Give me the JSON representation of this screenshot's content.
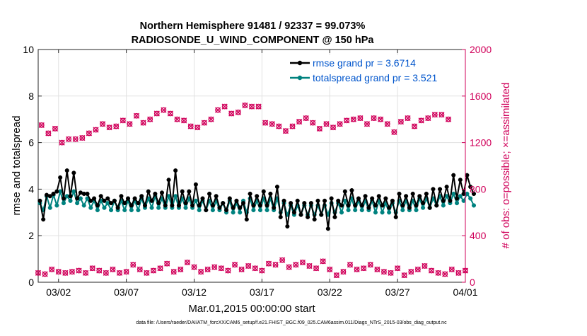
{
  "chart_data": {
    "type": "line",
    "title_line1": "Northern Hemisphere 91481 / 92337 = 99.073%",
    "title_line2": "RADIOSONDE_U_WIND_COMPONENT @ 150 hPa",
    "ylabel_left": "rmse and totalspread",
    "ylabel_right": "# of obs: o=possible; ×=assimilated",
    "xlabel": "Mar.01,2015 00:00:00 start",
    "footer": "data file: /Users/raeder/DAI/ATM_forcXX/CAM6_setup/f.e21.FHIST_BGC.f09_025.CAM6assim.011/Diags_NTrS_2015-03/obs_diag_output.nc",
    "ylim_left": [
      0,
      10
    ],
    "yticks_left": [
      "0",
      "2",
      "4",
      "6",
      "8",
      "10"
    ],
    "ylim_right": [
      0,
      2000
    ],
    "yticks_right": [
      "0",
      "400",
      "800",
      "1200",
      "1600",
      "2000"
    ],
    "xlim_days": [
      0,
      31.5
    ],
    "x_tick_days": [
      1.5,
      6.5,
      11.5,
      16.5,
      21.5,
      26.5,
      31.5
    ],
    "x_tick_labels": [
      "03/02",
      "03/07",
      "03/12",
      "03/17",
      "03/22",
      "03/27",
      "04/01"
    ],
    "time_step_days": 0.25,
    "time_start_day": 0.0,
    "colors": {
      "rmse": "#000000",
      "totalspread": "#00827f",
      "counts": "#d0005a",
      "legend_text": "#0055cc"
    },
    "legend": [
      {
        "label": "rmse grand pr = 3.6714",
        "series": "rmse"
      },
      {
        "label": "totalspread grand pr = 3.521",
        "series": "totalspread"
      }
    ],
    "series": [
      {
        "name": "rmse",
        "axis": "left",
        "values": [
          3.5,
          2.7,
          3.75,
          3.7,
          3.8,
          3.9,
          4.5,
          3.6,
          4.8,
          3.7,
          4.7,
          3.6,
          3.85,
          3.8,
          3.8,
          3.5,
          3.6,
          3.3,
          3.7,
          3.5,
          3.6,
          3.4,
          3.5,
          3.2,
          3.7,
          3.4,
          3.6,
          3.3,
          3.6,
          3.4,
          3.7,
          3.3,
          3.9,
          3.5,
          3.8,
          3.4,
          3.85,
          3.3,
          4.4,
          3.3,
          4.8,
          3.3,
          3.9,
          3.4,
          3.9,
          3.3,
          4.2,
          3.3,
          3.6,
          3.1,
          3.8,
          3.3,
          3.7,
          3.2,
          3.4,
          3.1,
          3.6,
          3.2,
          3.5,
          3.2,
          3.4,
          2.7,
          3.8,
          3.3,
          3.7,
          3.3,
          3.9,
          3.3,
          3.8,
          3.2,
          4.1,
          2.8,
          3.5,
          2.4,
          3.4,
          3.0,
          3.5,
          2.9,
          3.4,
          2.8,
          3.4,
          2.7,
          3.5,
          2.9,
          3.5,
          2.3,
          3.6,
          2.8,
          3.5,
          3.3,
          3.9,
          3.3,
          3.95,
          3.3,
          3.6,
          3.3,
          3.7,
          3.2,
          3.6,
          3.3,
          3.7,
          3.3,
          3.6,
          3.2,
          3.5,
          2.8,
          3.8,
          3.3,
          3.7,
          3.2,
          3.8,
          3.3,
          3.7,
          3.4,
          3.8,
          3.2,
          4.0,
          3.3,
          4.0,
          3.5,
          4.1,
          3.5,
          4.6,
          3.6,
          4.4,
          3.8,
          4.6,
          4.1,
          3.8
        ],
        "marker": "o"
      },
      {
        "name": "totalspread",
        "axis": "left",
        "values": [
          3.4,
          3.1,
          3.7,
          3.2,
          3.75,
          3.3,
          3.9,
          3.4,
          3.7,
          3.5,
          3.9,
          3.4,
          3.6,
          3.3,
          3.6,
          3.2,
          3.5,
          3.1,
          3.5,
          3.2,
          3.4,
          3.1,
          3.5,
          3.1,
          3.5,
          3.1,
          3.5,
          3.1,
          3.5,
          3.1,
          3.6,
          3.2,
          3.6,
          3.2,
          3.7,
          3.2,
          3.6,
          3.2,
          3.7,
          3.2,
          3.7,
          3.2,
          3.6,
          3.2,
          3.6,
          3.2,
          3.5,
          3.1,
          3.5,
          3.1,
          3.5,
          3.1,
          3.5,
          3.1,
          3.4,
          3.0,
          3.5,
          3.0,
          3.4,
          3.0,
          3.5,
          3.0,
          3.6,
          3.1,
          3.5,
          3.1,
          3.6,
          3.1,
          3.6,
          3.1,
          3.6,
          3.0,
          3.4,
          2.9,
          3.3,
          2.9,
          3.3,
          2.9,
          3.3,
          2.9,
          3.3,
          2.9,
          3.3,
          2.9,
          3.3,
          2.9,
          3.4,
          3.0,
          3.4,
          3.0,
          3.5,
          3.1,
          3.6,
          3.1,
          3.5,
          3.1,
          3.5,
          3.1,
          3.5,
          3.0,
          3.5,
          3.0,
          3.4,
          3.0,
          3.4,
          3.0,
          3.5,
          3.1,
          3.5,
          3.1,
          3.5,
          3.1,
          3.6,
          3.2,
          3.6,
          3.2,
          3.6,
          3.3,
          3.7,
          3.3,
          3.7,
          3.4,
          3.8,
          3.4,
          3.7,
          3.5,
          3.8,
          3.6,
          3.3
        ],
        "marker": "o"
      },
      {
        "name": "obs_possible_6Z_18Z",
        "axis": "right",
        "x_offset_days": 0.25,
        "x_step_days": 0.5,
        "values": [
          1350,
          1280,
          1320,
          1200,
          1230,
          1230,
          1240,
          1280,
          1310,
          1360,
          1330,
          1340,
          1390,
          1360,
          1430,
          1370,
          1400,
          1450,
          1480,
          1450,
          1400,
          1390,
          1340,
          1330,
          1370,
          1400,
          1480,
          1510,
          1450,
          1460,
          1520,
          1510,
          1510,
          1370,
          1360,
          1340,
          1300,
          1340,
          1380,
          1410,
          1370,
          1320,
          1360,
          1330,
          1360,
          1390,
          1400,
          1410,
          1360,
          1410,
          1400,
          1360,
          1290,
          1380,
          1410,
          1340,
          1390,
          1410,
          1440,
          1440,
          1400
        ]
      },
      {
        "name": "obs_possible_0Z_12Z",
        "axis": "right",
        "x_offset_days": 0.0,
        "x_step_days": 0.5,
        "values": [
          80,
          70,
          110,
          90,
          80,
          90,
          100,
          80,
          120,
          100,
          80,
          110,
          80,
          90,
          150,
          110,
          80,
          100,
          120,
          160,
          90,
          110,
          170,
          130,
          90,
          110,
          130,
          120,
          100,
          150,
          110,
          140,
          120,
          100,
          160,
          150,
          190,
          130,
          150,
          170,
          140,
          120,
          180,
          110,
          60,
          90,
          150,
          110,
          120,
          150,
          110,
          90,
          80,
          120,
          60,
          90,
          110,
          140,
          100,
          80,
          70,
          110,
          80,
          100,
          90
        ]
      }
    ]
  }
}
